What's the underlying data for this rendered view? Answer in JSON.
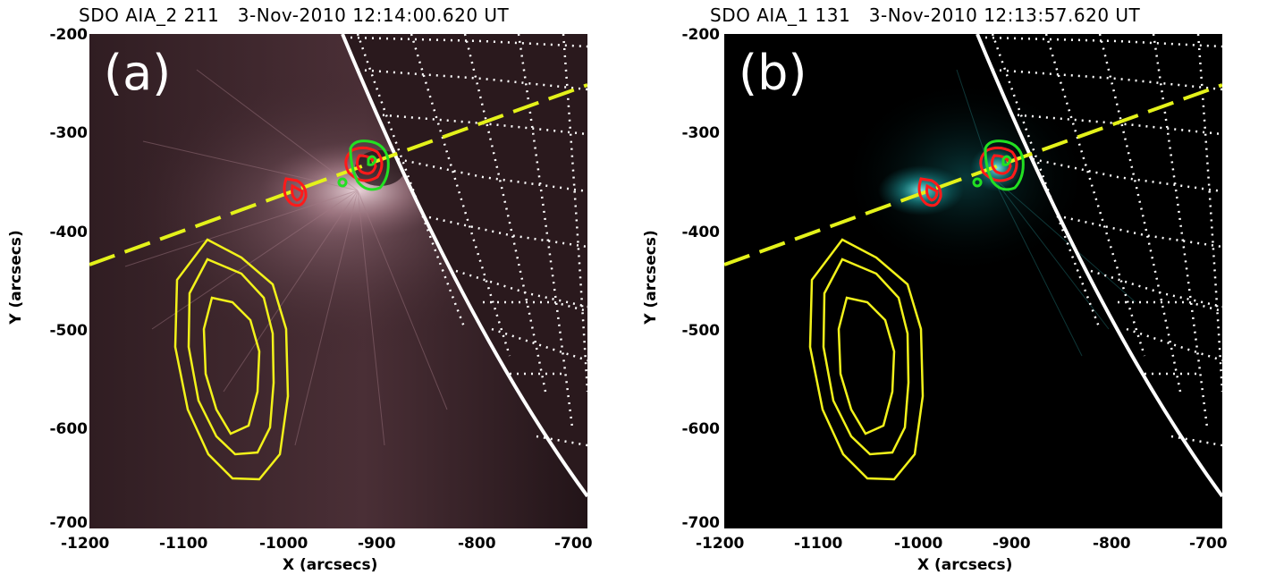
{
  "panels": [
    {
      "title": "SDO AIA_2 211   3-Nov-2010 12:14:00.620 UT",
      "label": "(a)",
      "xlabel": "X (arcsecs)",
      "ylabel": "Y (arcsecs)",
      "xticks": [
        "-1200",
        "-1100",
        "-1000",
        "-900",
        "-800",
        "-700"
      ],
      "yticks": [
        "-200",
        "-300",
        "-400",
        "-500",
        "-600",
        "-700"
      ],
      "image_tint": "#7a5560"
    },
    {
      "title": "SDO AIA_1 131   3-Nov-2010 12:13:57.620 UT",
      "label": "(b)",
      "xlabel": "X (arcsecs)",
      "ylabel": "Y (arcsecs)",
      "xticks": [
        "-1200",
        "-1100",
        "-1000",
        "-900",
        "-800",
        "-700"
      ],
      "yticks": [
        "-200",
        "-300",
        "-400",
        "-500",
        "-600",
        "-700"
      ],
      "image_tint": "#0f6f73"
    }
  ],
  "colors": {
    "limb": "#ffffff",
    "grid": "#ffffff",
    "slit": "#e4f21a",
    "yellow_contours": "#f2f21a",
    "red_contours": "#ff1a1a",
    "green_contours": "#22e022"
  }
}
